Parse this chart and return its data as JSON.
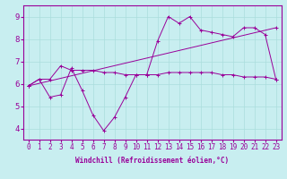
{
  "xlabel": "Windchill (Refroidissement éolien,°C)",
  "bg_color": "#c8eef0",
  "line_color": "#990099",
  "xlim": [
    -0.5,
    23.5
  ],
  "ylim": [
    3.5,
    9.5
  ],
  "xticks": [
    0,
    1,
    2,
    3,
    4,
    5,
    6,
    7,
    8,
    9,
    10,
    11,
    12,
    13,
    14,
    15,
    16,
    17,
    18,
    19,
    20,
    21,
    22,
    23
  ],
  "yticks": [
    4,
    5,
    6,
    7,
    8,
    9
  ],
  "series1_x": [
    0,
    1,
    2,
    3,
    4,
    5,
    6,
    7,
    8,
    9,
    10,
    11,
    12,
    13,
    14,
    15,
    16,
    17,
    18,
    19,
    20,
    21,
    22,
    23
  ],
  "series1_y": [
    5.9,
    6.2,
    5.4,
    5.5,
    6.7,
    5.7,
    4.6,
    3.9,
    4.5,
    5.4,
    6.4,
    6.4,
    7.9,
    9.0,
    8.7,
    9.0,
    8.4,
    8.3,
    8.2,
    8.1,
    8.5,
    8.5,
    8.2,
    6.2
  ],
  "series2_x": [
    0,
    1,
    2,
    3,
    4,
    5,
    6,
    7,
    8,
    9,
    10,
    11,
    12,
    13,
    14,
    15,
    16,
    17,
    18,
    19,
    20,
    21,
    22,
    23
  ],
  "series2_y": [
    5.9,
    6.2,
    6.2,
    6.8,
    6.6,
    6.6,
    6.6,
    6.5,
    6.5,
    6.4,
    6.4,
    6.4,
    6.4,
    6.5,
    6.5,
    6.5,
    6.5,
    6.5,
    6.4,
    6.4,
    6.3,
    6.3,
    6.3,
    6.2
  ],
  "series3_x": [
    0,
    23
  ],
  "series3_y": [
    5.9,
    8.5
  ],
  "grid_color": "#aadddd",
  "tick_fontsize": 5.5,
  "xlabel_fontsize": 5.5
}
